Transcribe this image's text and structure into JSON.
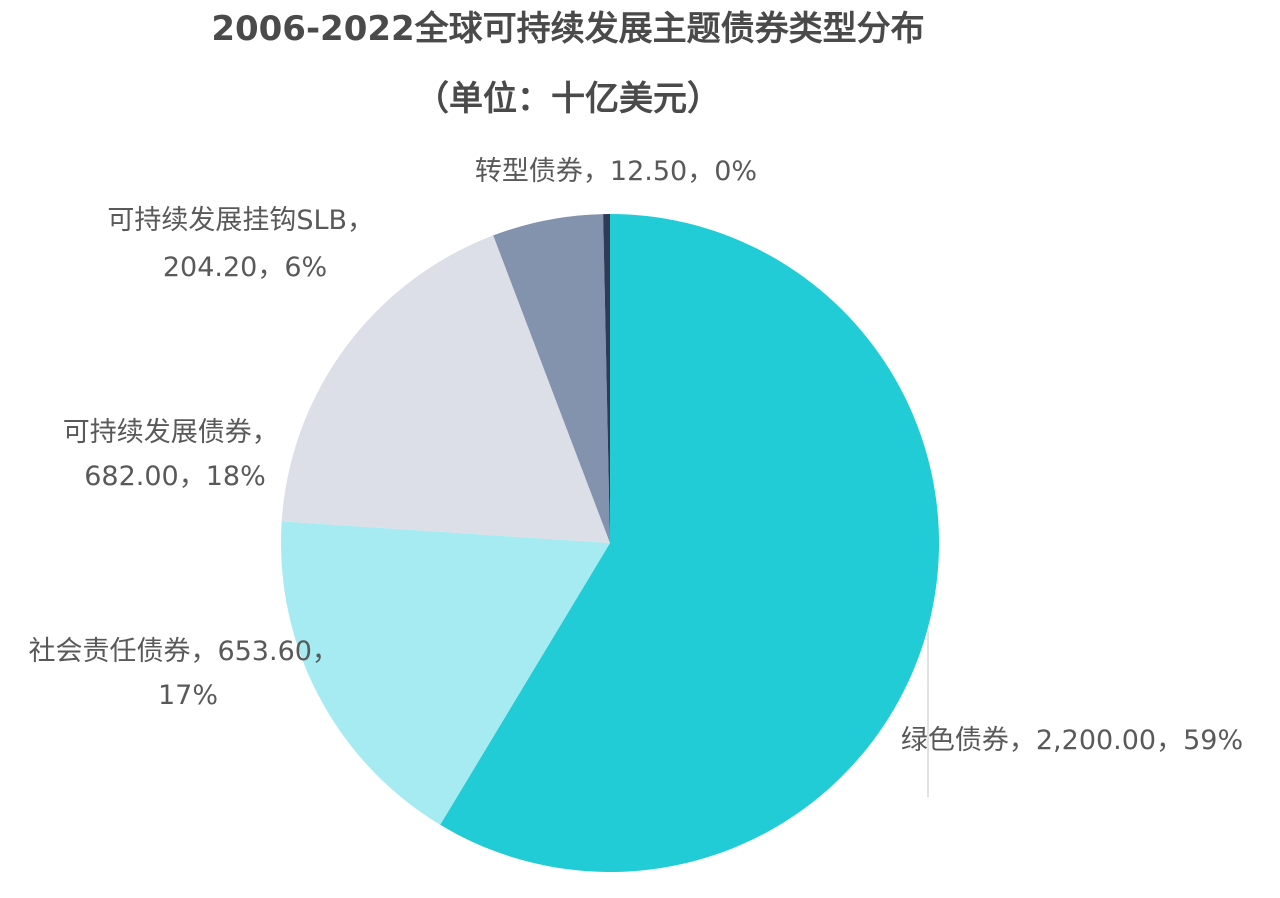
{
  "chart_data": {
    "type": "pie",
    "title": "2006-2022全球可持续发展主题债券类型分布",
    "subtitle": "（单位：十亿美元）",
    "series": [
      {
        "label": "绿色债券",
        "value": 2200.0,
        "value_text": "2,200.00",
        "percent_text": "59%",
        "color": "#21ccd6"
      },
      {
        "label": "社会责任债券",
        "value": 653.6,
        "value_text": "653.60",
        "percent_text": "17%",
        "color": "#a5ebf1"
      },
      {
        "label": "可持续发展债券",
        "value": 682.0,
        "value_text": "682.00",
        "percent_text": "18%",
        "color": "#dcdfe8"
      },
      {
        "label": "可持续发展挂钩SLB",
        "value": 204.2,
        "value_text": "204.20",
        "percent_text": "6%",
        "color": "#8493ad"
      },
      {
        "label": "转型债券",
        "value": 12.5,
        "value_text": "12.50",
        "percent_text": "0%",
        "color": "#2f3b55"
      }
    ],
    "labels": [
      {
        "line1": "绿色债券，2,200.00，59%",
        "line2": ""
      },
      {
        "line1": "社会责任债券，653.60，",
        "line2": "17%"
      },
      {
        "line1": "可持续发展债券，",
        "line2": "682.00，18%"
      },
      {
        "line1": "可持续发展挂钩SLB，",
        "line2": "204.20，6%"
      },
      {
        "line1": "转型债券，12.50，0%",
        "line2": ""
      }
    ]
  }
}
